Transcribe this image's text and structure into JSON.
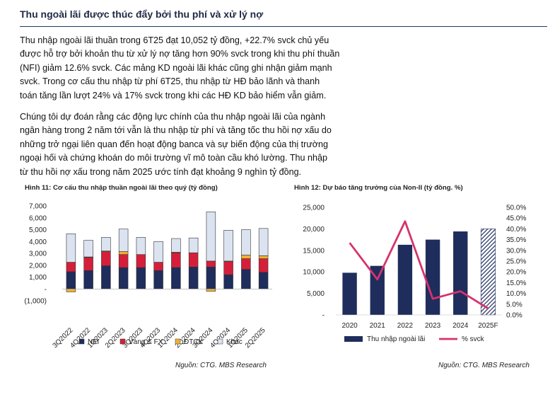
{
  "section": {
    "title": "Thu ngoài lãi được thúc đẩy bởi thu phí và xử lý nợ"
  },
  "paragraphs": [
    {
      "lines": [
        "Thu nhập ngoài lãi thuần trong 6T25 đạt 10,052 tỷ đồng, +22.7% svck chủ yếu",
        "được hỗ trợ bởi khoản thu từ xử lý nợ tăng hơn 90% svck trong khi thu phí thuần",
        "(NFI) giảm 12.6% svck. Các mảng KD ngoài lãi khác cũng ghi nhận giảm mạnh",
        "svck. Trong cơ cấu thu nhập từ phí 6T25, thu nhập từ HĐ bảo lãnh và  thanh",
        "toán tăng lần lượt 24% và 17% svck trong khi các HĐ KD bảo hiểm vẫn giảm."
      ]
    },
    {
      "lines": [
        "Chúng tôi dự đoán rằng các động lực chính của thu nhập ngoài lãi của ngành",
        "ngân hàng trong 2 năm tới vẫn là thu nhập từ phí và tăng tốc thu hồi nợ xấu do",
        "những trở ngại liên quan đến hoạt động banca và sự biến động của thị trường",
        "ngoại hối và chứng khoán do môi trường vĩ mô toàn cầu khó lường. Thu nhập",
        "từ thu hồi nợ xấu trong năm 2025 ước tính đạt khoảng 9 nghìn tỷ đồng."
      ]
    }
  ],
  "figures": {
    "fig11": {
      "title": "Hình 11: Cơ cấu thu nhập thuần ngoài lãi theo quý (tỷ đồng)",
      "source": "Nguồn: CTG. MBS Research"
    },
    "fig12": {
      "title": "Hình 12: Dự báo tăng trưởng của Non-II (tỷ đồng. %)",
      "source": "Nguồn: CTG. MBS Research"
    }
  },
  "chart_data": [
    {
      "type": "bar",
      "stacked": true,
      "title": "Hình 11: Cơ cấu thu nhập thuần ngoài lãi theo quý (tỷ đồng)",
      "categories": [
        "3Q2022",
        "4Q2022",
        "1Q2023",
        "2Q2023",
        "3Q2023",
        "4Q2023",
        "1Q2024",
        "2Q2024",
        "3Q2024",
        "4Q2024",
        "1Q2025",
        "2Q2025"
      ],
      "tick_labels": [
        "7,000",
        "6,000",
        "5,000",
        "4,000",
        "3,000",
        "2,000",
        "1,000",
        "-",
        "(1,000)"
      ],
      "ylim": [
        -1000,
        7000
      ],
      "series": [
        {
          "name": "NFI",
          "color": "#1f2d5c",
          "values": [
            1450,
            1550,
            1950,
            1800,
            1800,
            1550,
            1800,
            1850,
            1850,
            1200,
            1650,
            1400
          ]
        },
        {
          "name": "Vàng & FX",
          "color": "#d51f3a",
          "values": [
            800,
            1100,
            1200,
            1100,
            1100,
            700,
            1250,
            1200,
            500,
            1100,
            900,
            1150
          ]
        },
        {
          "name": "ĐTCK",
          "color": "#f0b132",
          "values": [
            -250,
            50,
            50,
            250,
            0,
            0,
            50,
            0,
            -200,
            50,
            300,
            250
          ]
        },
        {
          "name": "Khác",
          "color": "#dbe3f1",
          "values": [
            2400,
            1400,
            1150,
            1900,
            1450,
            1750,
            1150,
            1250,
            4150,
            2600,
            2150,
            2300
          ]
        }
      ],
      "legend_position": "bottom",
      "grid": false
    },
    {
      "type": "bar",
      "title": "Hình 12: Dự báo tăng trưởng của Non-II (tỷ đồng. %)",
      "categories": [
        "2020",
        "2021",
        "2022",
        "2023",
        "2024",
        "2025F"
      ],
      "left_ticks": [
        "25,000",
        "20,000",
        "15,000",
        "10,000",
        "5,000",
        "-"
      ],
      "right_ticks": [
        "50.0%",
        "45.0%",
        "40.0%",
        "35.0%",
        "30.0%",
        "25.0%",
        "20.0%",
        "15.0%",
        "10.0%",
        "5.0%",
        "0.0%"
      ],
      "ylim": [
        0,
        25000
      ],
      "y2lim": [
        0,
        50
      ],
      "series": [
        {
          "name": "Thu nhập ngoài lãi",
          "type": "bar",
          "axis": "left",
          "color": "#1f2d5c",
          "values": [
            9800,
            11400,
            16300,
            17500,
            19400,
            20000
          ],
          "forecast_index": 5
        },
        {
          "name": "% svck",
          "type": "line",
          "axis": "right",
          "color": "#d6336c",
          "values": [
            33.5,
            16.5,
            43.5,
            7.5,
            11,
            3
          ]
        }
      ],
      "legend_position": "bottom",
      "grid": false
    }
  ]
}
